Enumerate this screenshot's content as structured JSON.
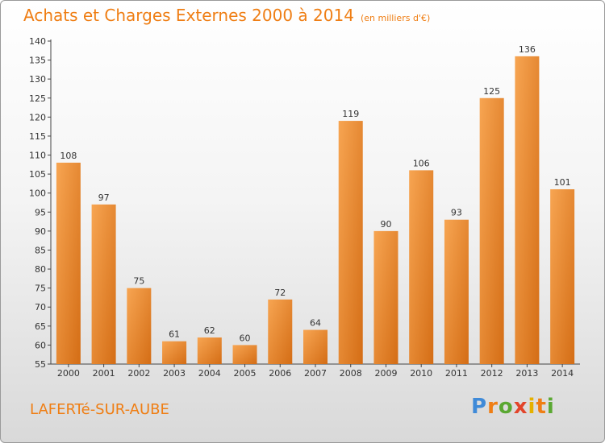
{
  "header": {
    "title": "Achats et Charges Externes 2000 à 2014",
    "unit": "(en milliers d'€)"
  },
  "footer": {
    "location": "LAFERTé-SUR-AUBE",
    "logo_letters": [
      "P",
      "r",
      "o",
      "x",
      "i",
      "t",
      "i"
    ],
    "logo_colors": [
      "#3f8ad8",
      "#ef7e14",
      "#5aa832",
      "#e2452b",
      "#e5b100",
      "#ef7e14",
      "#5aa832"
    ]
  },
  "colors": {
    "title": "#ef7e14",
    "bar_light": "#f7a552",
    "bar_dark": "#d46d15"
  },
  "chart_data": {
    "type": "bar",
    "title": "Achats et Charges Externes 2000 à 2014",
    "subtitle": "(en milliers d'€)",
    "categories": [
      "2000",
      "2001",
      "2002",
      "2003",
      "2004",
      "2005",
      "2006",
      "2007",
      "2008",
      "2009",
      "2010",
      "2011",
      "2012",
      "2013",
      "2014"
    ],
    "values": [
      108,
      97,
      75,
      61,
      62,
      60,
      72,
      64,
      119,
      90,
      106,
      93,
      125,
      136,
      101
    ],
    "ylim": [
      55,
      140
    ],
    "yticks": [
      55,
      60,
      65,
      70,
      75,
      80,
      85,
      90,
      95,
      100,
      105,
      110,
      115,
      120,
      125,
      130,
      135,
      140
    ],
    "grid": false,
    "data_labels": true
  }
}
